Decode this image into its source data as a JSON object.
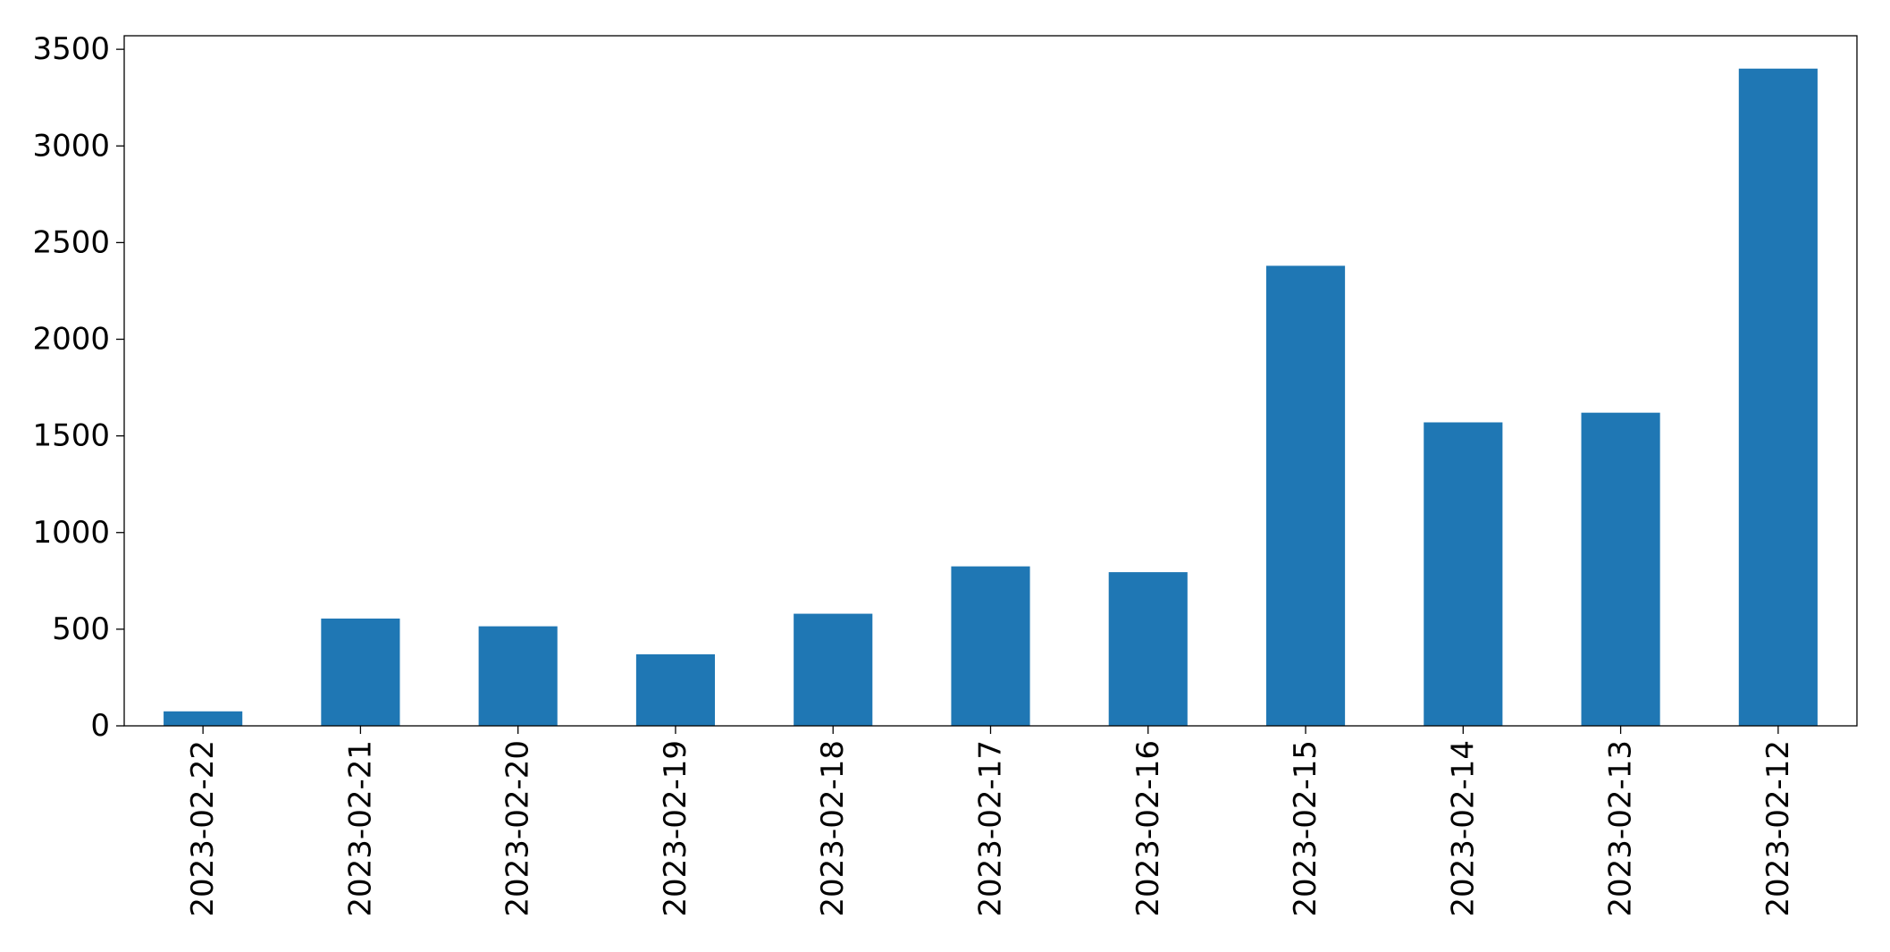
{
  "chart_data": {
    "type": "bar",
    "title": "",
    "xlabel": "",
    "ylabel": "",
    "categories": [
      "2023-02-22",
      "2023-02-21",
      "2023-02-20",
      "2023-02-19",
      "2023-02-18",
      "2023-02-17",
      "2023-02-16",
      "2023-02-15",
      "2023-02-14",
      "2023-02-13",
      "2023-02-12"
    ],
    "values": [
      75,
      555,
      515,
      370,
      580,
      825,
      795,
      2380,
      1570,
      1620,
      3400
    ],
    "ylim": [
      0,
      3570
    ],
    "yticks": [
      0,
      500,
      1000,
      1500,
      2000,
      2500,
      3000,
      3500
    ],
    "ytick_labels": [
      "0",
      "500",
      "1000",
      "1500",
      "2000",
      "2500",
      "3000",
      "3500"
    ],
    "grid": false,
    "bar_color": "#1f77b4",
    "axis_color": "#000000"
  }
}
